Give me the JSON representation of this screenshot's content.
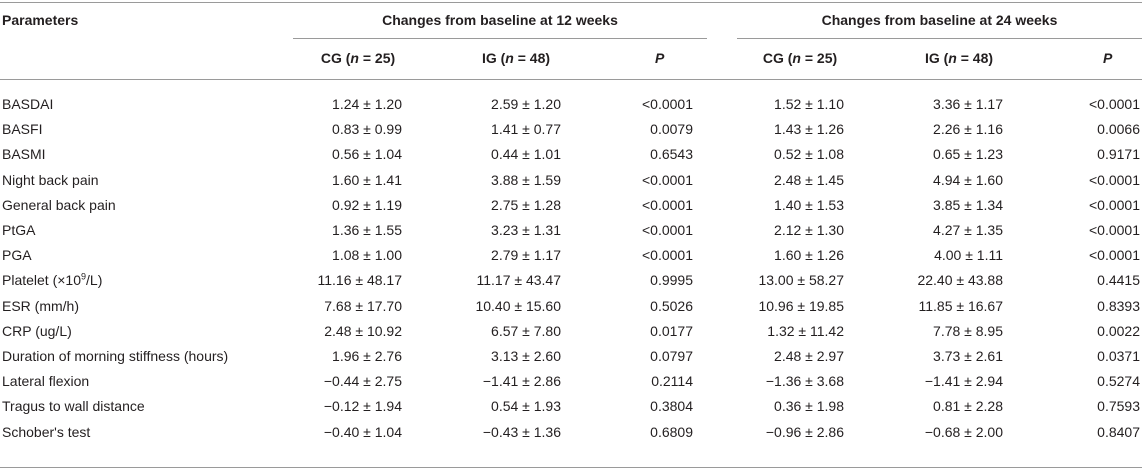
{
  "table": {
    "param_header": "Parameters",
    "group_12": "Changes from baseline at 12 weeks",
    "group_24": "Changes from baseline at 24 weeks",
    "col_cg": "CG (n = 25)",
    "col_ig": "IG (n = 48)",
    "col_p": "P",
    "rows": [
      {
        "param": "BASDAI",
        "cg12": "1.24 ± 1.20",
        "ig12": "2.59 ± 1.20",
        "p12": "<0.0001",
        "cg24": "1.52 ± 1.10",
        "ig24": "3.36 ± 1.17",
        "p24": "<0.0001"
      },
      {
        "param": "BASFI",
        "cg12": "0.83 ± 0.99",
        "ig12": "1.41 ± 0.77",
        "p12": "0.0079",
        "cg24": "1.43 ± 1.26",
        "ig24": "2.26 ± 1.16",
        "p24": "0.0066"
      },
      {
        "param": "BASMI",
        "cg12": "0.56 ± 1.04",
        "ig12": "0.44 ± 1.01",
        "p12": "0.6543",
        "cg24": "0.52 ± 1.08",
        "ig24": "0.65 ± 1.23",
        "p24": "0.9171"
      },
      {
        "param": "Night back pain",
        "cg12": "1.60 ± 1.41",
        "ig12": "3.88 ± 1.59",
        "p12": "<0.0001",
        "cg24": "2.48 ± 1.45",
        "ig24": "4.94 ± 1.60",
        "p24": "<0.0001"
      },
      {
        "param": "General back pain",
        "cg12": "0.92 ± 1.19",
        "ig12": "2.75 ± 1.28",
        "p12": "<0.0001",
        "cg24": "1.40 ± 1.53",
        "ig24": "3.85 ± 1.34",
        "p24": "<0.0001"
      },
      {
        "param": "PtGA",
        "cg12": "1.36 ± 1.55",
        "ig12": "3.23 ± 1.31",
        "p12": "<0.0001",
        "cg24": "2.12 ± 1.30",
        "ig24": "4.27 ± 1.35",
        "p24": "<0.0001"
      },
      {
        "param": "PGA",
        "cg12": "1.08 ± 1.00",
        "ig12": "2.79 ± 1.17",
        "p12": "<0.0001",
        "cg24": "1.60 ± 1.26",
        "ig24": "4.00 ± 1.11",
        "p24": "<0.0001"
      },
      {
        "param": "Platelet (×10⁹/L)",
        "cg12": "11.16 ± 48.17",
        "ig12": "11.17 ± 43.47",
        "p12": "0.9995",
        "cg24": "13.00 ± 58.27",
        "ig24": "22.40 ± 43.88",
        "p24": "0.4415"
      },
      {
        "param": "ESR (mm/h)",
        "cg12": "7.68 ± 17.70",
        "ig12": "10.40 ± 15.60",
        "p12": "0.5026",
        "cg24": "10.96 ± 19.85",
        "ig24": "11.85 ± 16.67",
        "p24": "0.8393"
      },
      {
        "param": "CRP (ug/L)",
        "cg12": "2.48 ± 10.92",
        "ig12": "6.57 ± 7.80",
        "p12": "0.0177",
        "cg24": "1.32 ± 11.42",
        "ig24": "7.78 ± 8.95",
        "p24": "0.0022"
      },
      {
        "param": "Duration of morning stiffness (hours)",
        "cg12": "1.96 ± 2.76",
        "ig12": "3.13 ± 2.60",
        "p12": "0.0797",
        "cg24": "2.48 ± 2.97",
        "ig24": "3.73 ± 2.61",
        "p24": "0.0371"
      },
      {
        "param": "Lateral flexion",
        "cg12": "−0.44 ± 2.75",
        "ig12": "−1.41 ± 2.86",
        "p12": "0.2114",
        "cg24": "−1.36 ± 3.68",
        "ig24": "−1.41 ± 2.94",
        "p24": "0.5274"
      },
      {
        "param": "Tragus to wall distance",
        "cg12": "−0.12 ± 1.94",
        "ig12": "0.54 ± 1.93",
        "p12": "0.3804",
        "cg24": "0.36 ± 1.98",
        "ig24": "0.81 ± 2.28",
        "p24": "0.7593"
      },
      {
        "param": "Schober's test",
        "cg12": "−0.40 ± 1.04",
        "ig12": "−0.43 ± 1.36",
        "p12": "0.6809",
        "cg24": "−0.96 ± 2.86",
        "ig24": "−0.68 ± 2.00",
        "p24": "0.8407"
      }
    ]
  }
}
